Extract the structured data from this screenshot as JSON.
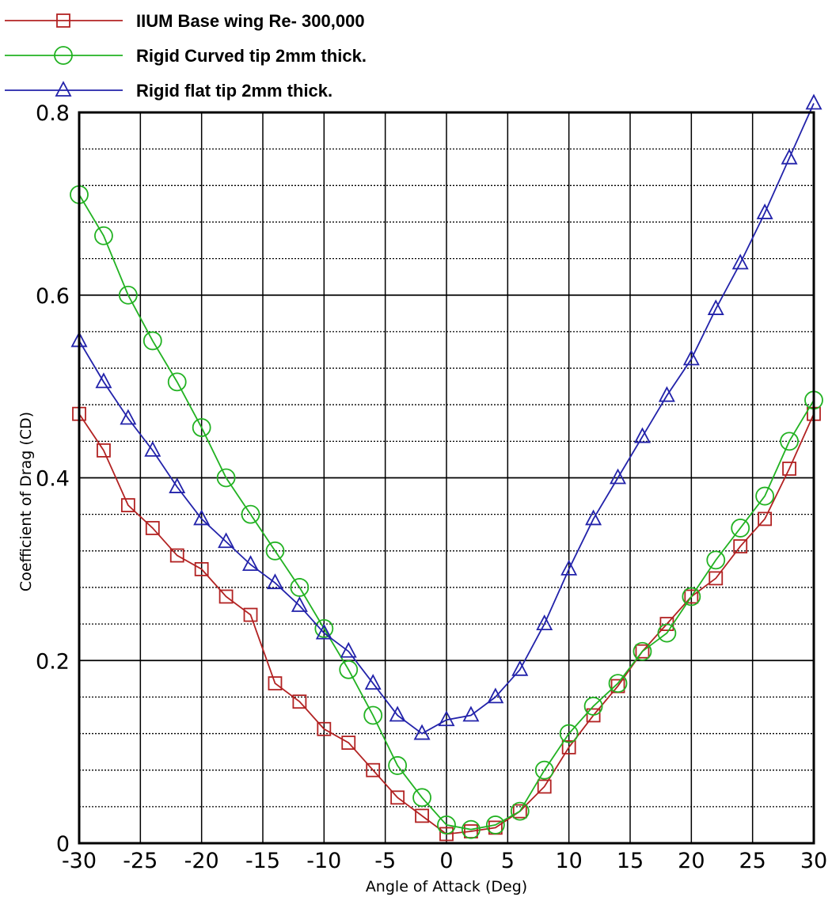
{
  "chart_data": {
    "type": "line",
    "xlabel": "Angle of Attack (Deg)",
    "ylabel": "Coefficient of Drag (CD)",
    "xlim": [
      -30,
      30
    ],
    "ylim": [
      0,
      0.8
    ],
    "xticks": [
      -30,
      -25,
      -20,
      -15,
      -10,
      -5,
      0,
      5,
      10,
      15,
      20,
      25,
      30
    ],
    "yticks": [
      0,
      0.2,
      0.4,
      0.6,
      0.8
    ],
    "ytick_labels": [
      "0",
      "0.2",
      "0.4",
      "0.6",
      "0.8"
    ],
    "grid": "on",
    "legend_position": "top-left",
    "series": [
      {
        "name": "IIUM Base wing   Re- 300,000",
        "color": "#b22222",
        "marker": "square",
        "x": [
          -30,
          -28,
          -26,
          -24,
          -22,
          -20,
          -18,
          -16,
          -14,
          -12,
          -10,
          -8,
          -6,
          -4,
          -2,
          0,
          2,
          4,
          6,
          8,
          10,
          12,
          14,
          16,
          18,
          20,
          22,
          24,
          26,
          28,
          30
        ],
        "y": [
          0.47,
          0.43,
          0.37,
          0.345,
          0.315,
          0.3,
          0.27,
          0.25,
          0.175,
          0.155,
          0.125,
          0.11,
          0.08,
          0.05,
          0.03,
          0.01,
          0.013,
          0.017,
          0.035,
          0.062,
          0.105,
          0.14,
          0.172,
          0.21,
          0.24,
          0.27,
          0.29,
          0.325,
          0.355,
          0.41,
          0.47
        ]
      },
      {
        "name": "Rigid Curved tip 2mm thick.",
        "color": "#22b222",
        "marker": "circle",
        "x": [
          -30,
          -28,
          -26,
          -24,
          -22,
          -20,
          -18,
          -16,
          -14,
          -12,
          -10,
          -8,
          -6,
          -4,
          -2,
          0,
          2,
          4,
          6,
          8,
          10,
          12,
          14,
          16,
          18,
          20,
          22,
          24,
          26,
          28,
          30
        ],
        "y": [
          0.71,
          0.665,
          0.6,
          0.55,
          0.505,
          0.455,
          0.4,
          0.36,
          0.32,
          0.28,
          0.235,
          0.19,
          0.14,
          0.085,
          0.05,
          0.02,
          0.015,
          0.02,
          0.035,
          0.08,
          0.12,
          0.15,
          0.175,
          0.21,
          0.23,
          0.27,
          0.31,
          0.345,
          0.38,
          0.44,
          0.485
        ]
      },
      {
        "name": "Rigid flat tip 2mm thick.",
        "color": "#2222aa",
        "marker": "triangle",
        "x": [
          -30,
          -28,
          -26,
          -24,
          -22,
          -20,
          -18,
          -16,
          -14,
          -12,
          -10,
          -8,
          -6,
          -4,
          -2,
          0,
          2,
          4,
          6,
          8,
          10,
          12,
          14,
          16,
          18,
          20,
          22,
          24,
          26,
          28,
          30
        ],
        "y": [
          0.55,
          0.505,
          0.465,
          0.43,
          0.39,
          0.355,
          0.33,
          0.305,
          0.285,
          0.26,
          0.23,
          0.21,
          0.175,
          0.14,
          0.12,
          0.135,
          0.14,
          0.16,
          0.19,
          0.24,
          0.3,
          0.355,
          0.4,
          0.445,
          0.49,
          0.53,
          0.585,
          0.635,
          0.69,
          0.75,
          0.81
        ]
      }
    ]
  }
}
